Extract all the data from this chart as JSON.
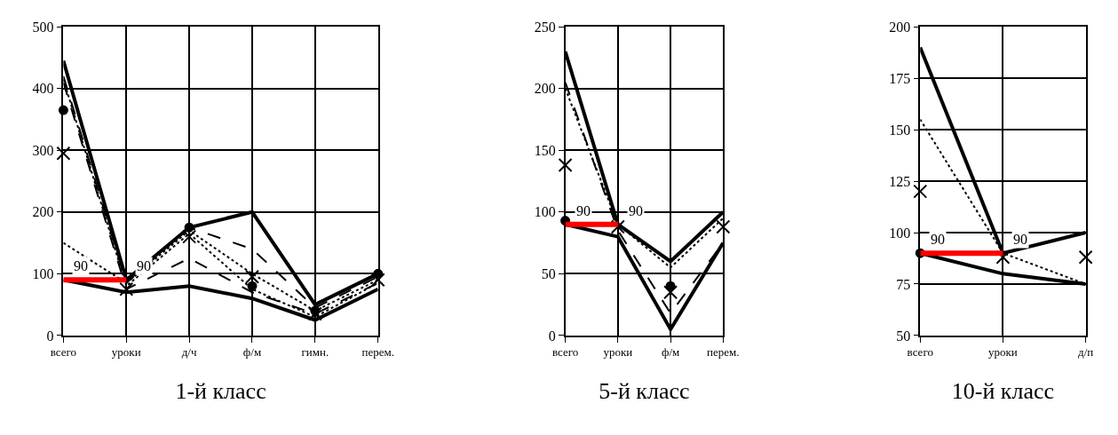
{
  "chart_data": [
    {
      "type": "line",
      "xlabel": "1-й класс",
      "categories": [
        "всего",
        "уроки",
        "д/ч",
        "ф/м",
        "гимн.",
        "перем."
      ],
      "ylim": [
        0,
        500
      ],
      "yticks": [
        0,
        100,
        200,
        300,
        400,
        500
      ],
      "grid": true,
      "series": [
        {
          "color": "#000000",
          "line_style": "solid",
          "values": [
            445,
            90,
            175,
            200,
            50,
            100
          ]
        },
        {
          "color": "#000000",
          "line_style": "solid",
          "values": [
            90,
            70,
            80,
            60,
            25,
            75
          ]
        },
        {
          "color": "#000000",
          "line_style": "dashed",
          "values": [
            420,
            85,
            175,
            140,
            45,
            95
          ]
        },
        {
          "color": "#000000",
          "line_style": "dashed",
          "values": [
            410,
            75,
            125,
            70,
            35,
            85
          ]
        },
        {
          "color": "#000000",
          "line_style": "dotted",
          "values": [
            150,
            85,
            170,
            100,
            40,
            90
          ]
        },
        {
          "color": "#000000",
          "line_style": "dotted",
          "values": [
            415,
            80,
            165,
            75,
            30,
            85
          ]
        },
        {
          "type": "scatter",
          "color": "#000000",
          "marker": "cross",
          "values": [
            295,
            75,
            160,
            95,
            35,
            90
          ]
        },
        {
          "type": "scatter",
          "color": "#000000",
          "marker": "circle",
          "values": [
            365,
            null,
            175,
            80,
            40,
            100
          ]
        },
        {
          "color": "#ff0000",
          "line_style": "solid",
          "values": [
            90,
            90,
            null,
            null,
            null,
            null
          ],
          "value_labels": [
            "90",
            "90",
            null,
            null,
            null,
            null
          ]
        }
      ]
    },
    {
      "type": "line",
      "xlabel": "5-й класс",
      "categories": [
        "всего",
        "уроки",
        "ф/м",
        "перем."
      ],
      "ylim": [
        0,
        250
      ],
      "yticks": [
        0,
        50,
        100,
        150,
        200,
        250
      ],
      "grid": true,
      "series": [
        {
          "color": "#000000",
          "line_style": "solid",
          "values": [
            230,
            90,
            60,
            100
          ]
        },
        {
          "color": "#000000",
          "line_style": "solid",
          "values": [
            90,
            80,
            5,
            75
          ]
        },
        {
          "color": "#000000",
          "line_style": "dotted",
          "values": [
            200,
            90,
            55,
            95
          ]
        },
        {
          "color": "#000000",
          "line_style": "dashed",
          "values": [
            205,
            85,
            18,
            75
          ]
        },
        {
          "type": "scatter",
          "color": "#000000",
          "marker": "cross",
          "values": [
            138,
            88,
            35,
            88
          ]
        },
        {
          "type": "scatter",
          "color": "#000000",
          "marker": "circle",
          "values": [
            93,
            null,
            40,
            null
          ]
        },
        {
          "color": "#ff0000",
          "line_style": "solid",
          "values": [
            90,
            90,
            null,
            null
          ],
          "value_labels": [
            "90",
            "90",
            null,
            null
          ]
        }
      ]
    },
    {
      "type": "line",
      "xlabel": "10-й класс",
      "categories": [
        "всего",
        "уроки",
        "д/п"
      ],
      "ylim": [
        50,
        200
      ],
      "yticks": [
        50,
        75,
        100,
        125,
        150,
        175,
        200
      ],
      "grid": true,
      "series": [
        {
          "color": "#000000",
          "line_style": "solid",
          "values": [
            190,
            90,
            100
          ]
        },
        {
          "color": "#000000",
          "line_style": "solid",
          "values": [
            90,
            80,
            75
          ]
        },
        {
          "color": "#000000",
          "line_style": "dotted",
          "values": [
            155,
            90,
            75
          ]
        },
        {
          "type": "scatter",
          "color": "#000000",
          "marker": "cross",
          "values": [
            120,
            88,
            88
          ]
        },
        {
          "type": "scatter",
          "color": "#000000",
          "marker": "circle",
          "values": [
            90,
            null,
            null
          ]
        },
        {
          "color": "#ff0000",
          "line_style": "solid",
          "values": [
            90,
            90,
            null
          ],
          "value_labels": [
            "90",
            "90",
            null
          ]
        }
      ]
    }
  ]
}
